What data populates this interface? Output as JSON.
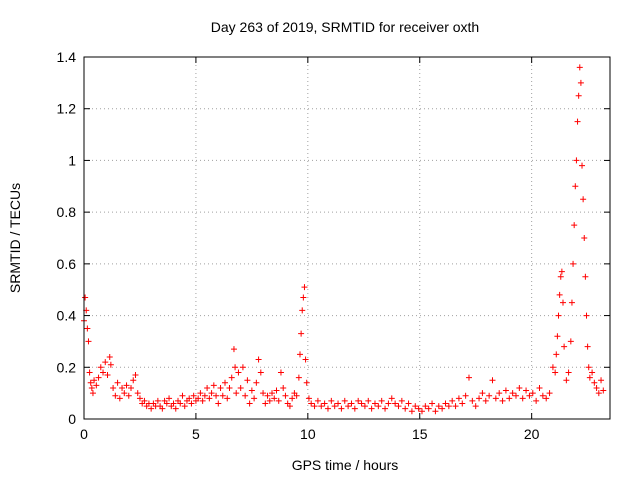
{
  "chart_data": {
    "type": "scatter",
    "title": "Day 263 of 2019, SRMTID for receiver oxth",
    "xlabel": "GPS time / hours",
    "ylabel": "SRMTID / TECUs",
    "xlim": [
      0,
      23.5
    ],
    "ylim": [
      0,
      1.4
    ],
    "xticks": [
      0,
      5,
      10,
      15,
      20
    ],
    "xtick_labels": [
      "0",
      "5",
      "10",
      "15",
      "20"
    ],
    "yticks": [
      0,
      0.2,
      0.4,
      0.6,
      0.8,
      1.0,
      1.2,
      1.4
    ],
    "ytick_labels": [
      "0",
      "0.2",
      "0.4",
      "0.6",
      "0.8",
      "1",
      "1.2",
      "1.4"
    ],
    "grid": true,
    "marker": "+",
    "color": "#ff0000",
    "series": [
      {
        "name": "SRMTID",
        "points": [
          [
            0.0,
            0.38
          ],
          [
            0.05,
            0.47
          ],
          [
            0.1,
            0.42
          ],
          [
            0.15,
            0.35
          ],
          [
            0.2,
            0.3
          ],
          [
            0.25,
            0.18
          ],
          [
            0.3,
            0.14
          ],
          [
            0.35,
            0.12
          ],
          [
            0.4,
            0.1
          ],
          [
            0.45,
            0.15
          ],
          [
            0.55,
            0.13
          ],
          [
            0.65,
            0.16
          ],
          [
            0.75,
            0.2
          ],
          [
            0.85,
            0.18
          ],
          [
            0.95,
            0.22
          ],
          [
            1.05,
            0.17
          ],
          [
            1.15,
            0.24
          ],
          [
            1.2,
            0.21
          ],
          [
            1.3,
            0.12
          ],
          [
            1.4,
            0.09
          ],
          [
            1.5,
            0.14
          ],
          [
            1.6,
            0.08
          ],
          [
            1.7,
            0.12
          ],
          [
            1.8,
            0.1
          ],
          [
            1.9,
            0.13
          ],
          [
            2.0,
            0.09
          ],
          [
            2.1,
            0.12
          ],
          [
            2.2,
            0.15
          ],
          [
            2.3,
            0.17
          ],
          [
            2.4,
            0.1
          ],
          [
            2.5,
            0.08
          ],
          [
            2.6,
            0.06
          ],
          [
            2.7,
            0.07
          ],
          [
            2.8,
            0.05
          ],
          [
            2.9,
            0.06
          ],
          [
            3.0,
            0.04
          ],
          [
            3.1,
            0.06
          ],
          [
            3.2,
            0.05
          ],
          [
            3.3,
            0.07
          ],
          [
            3.4,
            0.05
          ],
          [
            3.5,
            0.04
          ],
          [
            3.6,
            0.07
          ],
          [
            3.7,
            0.06
          ],
          [
            3.8,
            0.08
          ],
          [
            3.9,
            0.05
          ],
          [
            4.0,
            0.06
          ],
          [
            4.1,
            0.04
          ],
          [
            4.2,
            0.07
          ],
          [
            4.3,
            0.06
          ],
          [
            4.4,
            0.09
          ],
          [
            4.5,
            0.05
          ],
          [
            4.6,
            0.07
          ],
          [
            4.7,
            0.08
          ],
          [
            4.8,
            0.06
          ],
          [
            4.9,
            0.09
          ],
          [
            5.0,
            0.07
          ],
          [
            5.1,
            0.08
          ],
          [
            5.2,
            0.1
          ],
          [
            5.3,
            0.07
          ],
          [
            5.4,
            0.09
          ],
          [
            5.5,
            0.12
          ],
          [
            5.6,
            0.08
          ],
          [
            5.7,
            0.1
          ],
          [
            5.8,
            0.13
          ],
          [
            5.9,
            0.09
          ],
          [
            6.0,
            0.06
          ],
          [
            6.1,
            0.12
          ],
          [
            6.2,
            0.09
          ],
          [
            6.3,
            0.14
          ],
          [
            6.4,
            0.08
          ],
          [
            6.5,
            0.12
          ],
          [
            6.6,
            0.16
          ],
          [
            6.7,
            0.27
          ],
          [
            6.75,
            0.2
          ],
          [
            6.8,
            0.1
          ],
          [
            6.9,
            0.18
          ],
          [
            7.0,
            0.12
          ],
          [
            7.1,
            0.2
          ],
          [
            7.2,
            0.09
          ],
          [
            7.3,
            0.15
          ],
          [
            7.4,
            0.06
          ],
          [
            7.5,
            0.11
          ],
          [
            7.6,
            0.08
          ],
          [
            7.7,
            0.14
          ],
          [
            7.8,
            0.23
          ],
          [
            7.9,
            0.18
          ],
          [
            8.0,
            0.1
          ],
          [
            8.1,
            0.06
          ],
          [
            8.2,
            0.09
          ],
          [
            8.3,
            0.07
          ],
          [
            8.4,
            0.1
          ],
          [
            8.5,
            0.08
          ],
          [
            8.6,
            0.11
          ],
          [
            8.7,
            0.07
          ],
          [
            8.8,
            0.18
          ],
          [
            8.9,
            0.12
          ],
          [
            9.0,
            0.09
          ],
          [
            9.1,
            0.06
          ],
          [
            9.2,
            0.05
          ],
          [
            9.3,
            0.08
          ],
          [
            9.4,
            0.1
          ],
          [
            9.5,
            0.09
          ],
          [
            9.6,
            0.16
          ],
          [
            9.65,
            0.25
          ],
          [
            9.7,
            0.33
          ],
          [
            9.75,
            0.42
          ],
          [
            9.8,
            0.47
          ],
          [
            9.85,
            0.51
          ],
          [
            9.9,
            0.23
          ],
          [
            9.95,
            0.14
          ],
          [
            10.05,
            0.08
          ],
          [
            10.15,
            0.06
          ],
          [
            10.3,
            0.05
          ],
          [
            10.45,
            0.07
          ],
          [
            10.6,
            0.05
          ],
          [
            10.75,
            0.06
          ],
          [
            10.9,
            0.04
          ],
          [
            11.05,
            0.07
          ],
          [
            11.2,
            0.05
          ],
          [
            11.35,
            0.06
          ],
          [
            11.5,
            0.04
          ],
          [
            11.65,
            0.07
          ],
          [
            11.8,
            0.05
          ],
          [
            11.95,
            0.06
          ],
          [
            12.1,
            0.04
          ],
          [
            12.25,
            0.07
          ],
          [
            12.4,
            0.06
          ],
          [
            12.55,
            0.05
          ],
          [
            12.7,
            0.07
          ],
          [
            12.85,
            0.04
          ],
          [
            13.0,
            0.06
          ],
          [
            13.15,
            0.05
          ],
          [
            13.3,
            0.07
          ],
          [
            13.45,
            0.04
          ],
          [
            13.6,
            0.06
          ],
          [
            13.75,
            0.08
          ],
          [
            13.9,
            0.06
          ],
          [
            14.05,
            0.05
          ],
          [
            14.2,
            0.07
          ],
          [
            14.35,
            0.04
          ],
          [
            14.5,
            0.06
          ],
          [
            14.65,
            0.03
          ],
          [
            14.8,
            0.05
          ],
          [
            14.95,
            0.04
          ],
          [
            15.1,
            0.03
          ],
          [
            15.25,
            0.05
          ],
          [
            15.4,
            0.04
          ],
          [
            15.55,
            0.06
          ],
          [
            15.7,
            0.03
          ],
          [
            15.85,
            0.05
          ],
          [
            16.0,
            0.04
          ],
          [
            16.15,
            0.06
          ],
          [
            16.3,
            0.05
          ],
          [
            16.45,
            0.07
          ],
          [
            16.6,
            0.05
          ],
          [
            16.75,
            0.08
          ],
          [
            16.9,
            0.06
          ],
          [
            17.05,
            0.09
          ],
          [
            17.2,
            0.16
          ],
          [
            17.35,
            0.07
          ],
          [
            17.5,
            0.05
          ],
          [
            17.65,
            0.08
          ],
          [
            17.8,
            0.1
          ],
          [
            17.95,
            0.07
          ],
          [
            18.1,
            0.09
          ],
          [
            18.25,
            0.15
          ],
          [
            18.4,
            0.08
          ],
          [
            18.55,
            0.1
          ],
          [
            18.7,
            0.07
          ],
          [
            18.85,
            0.11
          ],
          [
            19.0,
            0.08
          ],
          [
            19.15,
            0.1
          ],
          [
            19.3,
            0.09
          ],
          [
            19.45,
            0.12
          ],
          [
            19.6,
            0.08
          ],
          [
            19.75,
            0.11
          ],
          [
            19.9,
            0.09
          ],
          [
            20.05,
            0.1
          ],
          [
            20.2,
            0.07
          ],
          [
            20.35,
            0.12
          ],
          [
            20.5,
            0.09
          ],
          [
            20.65,
            0.08
          ],
          [
            20.8,
            0.1
          ],
          [
            20.95,
            0.2
          ],
          [
            21.05,
            0.18
          ],
          [
            21.1,
            0.25
          ],
          [
            21.15,
            0.32
          ],
          [
            21.2,
            0.4
          ],
          [
            21.25,
            0.48
          ],
          [
            21.3,
            0.55
          ],
          [
            21.35,
            0.57
          ],
          [
            21.4,
            0.45
          ],
          [
            21.45,
            0.28
          ],
          [
            21.55,
            0.15
          ],
          [
            21.65,
            0.18
          ],
          [
            21.75,
            0.3
          ],
          [
            21.8,
            0.45
          ],
          [
            21.85,
            0.6
          ],
          [
            21.9,
            0.75
          ],
          [
            21.95,
            0.9
          ],
          [
            22.0,
            1.0
          ],
          [
            22.05,
            1.15
          ],
          [
            22.1,
            1.25
          ],
          [
            22.15,
            1.36
          ],
          [
            22.2,
            1.3
          ],
          [
            22.25,
            0.98
          ],
          [
            22.3,
            0.85
          ],
          [
            22.35,
            0.7
          ],
          [
            22.4,
            0.55
          ],
          [
            22.45,
            0.4
          ],
          [
            22.5,
            0.28
          ],
          [
            22.55,
            0.2
          ],
          [
            22.6,
            0.16
          ],
          [
            22.7,
            0.18
          ],
          [
            22.8,
            0.14
          ],
          [
            22.9,
            0.12
          ],
          [
            23.0,
            0.1
          ],
          [
            23.1,
            0.15
          ],
          [
            23.2,
            0.11
          ]
        ]
      }
    ]
  }
}
